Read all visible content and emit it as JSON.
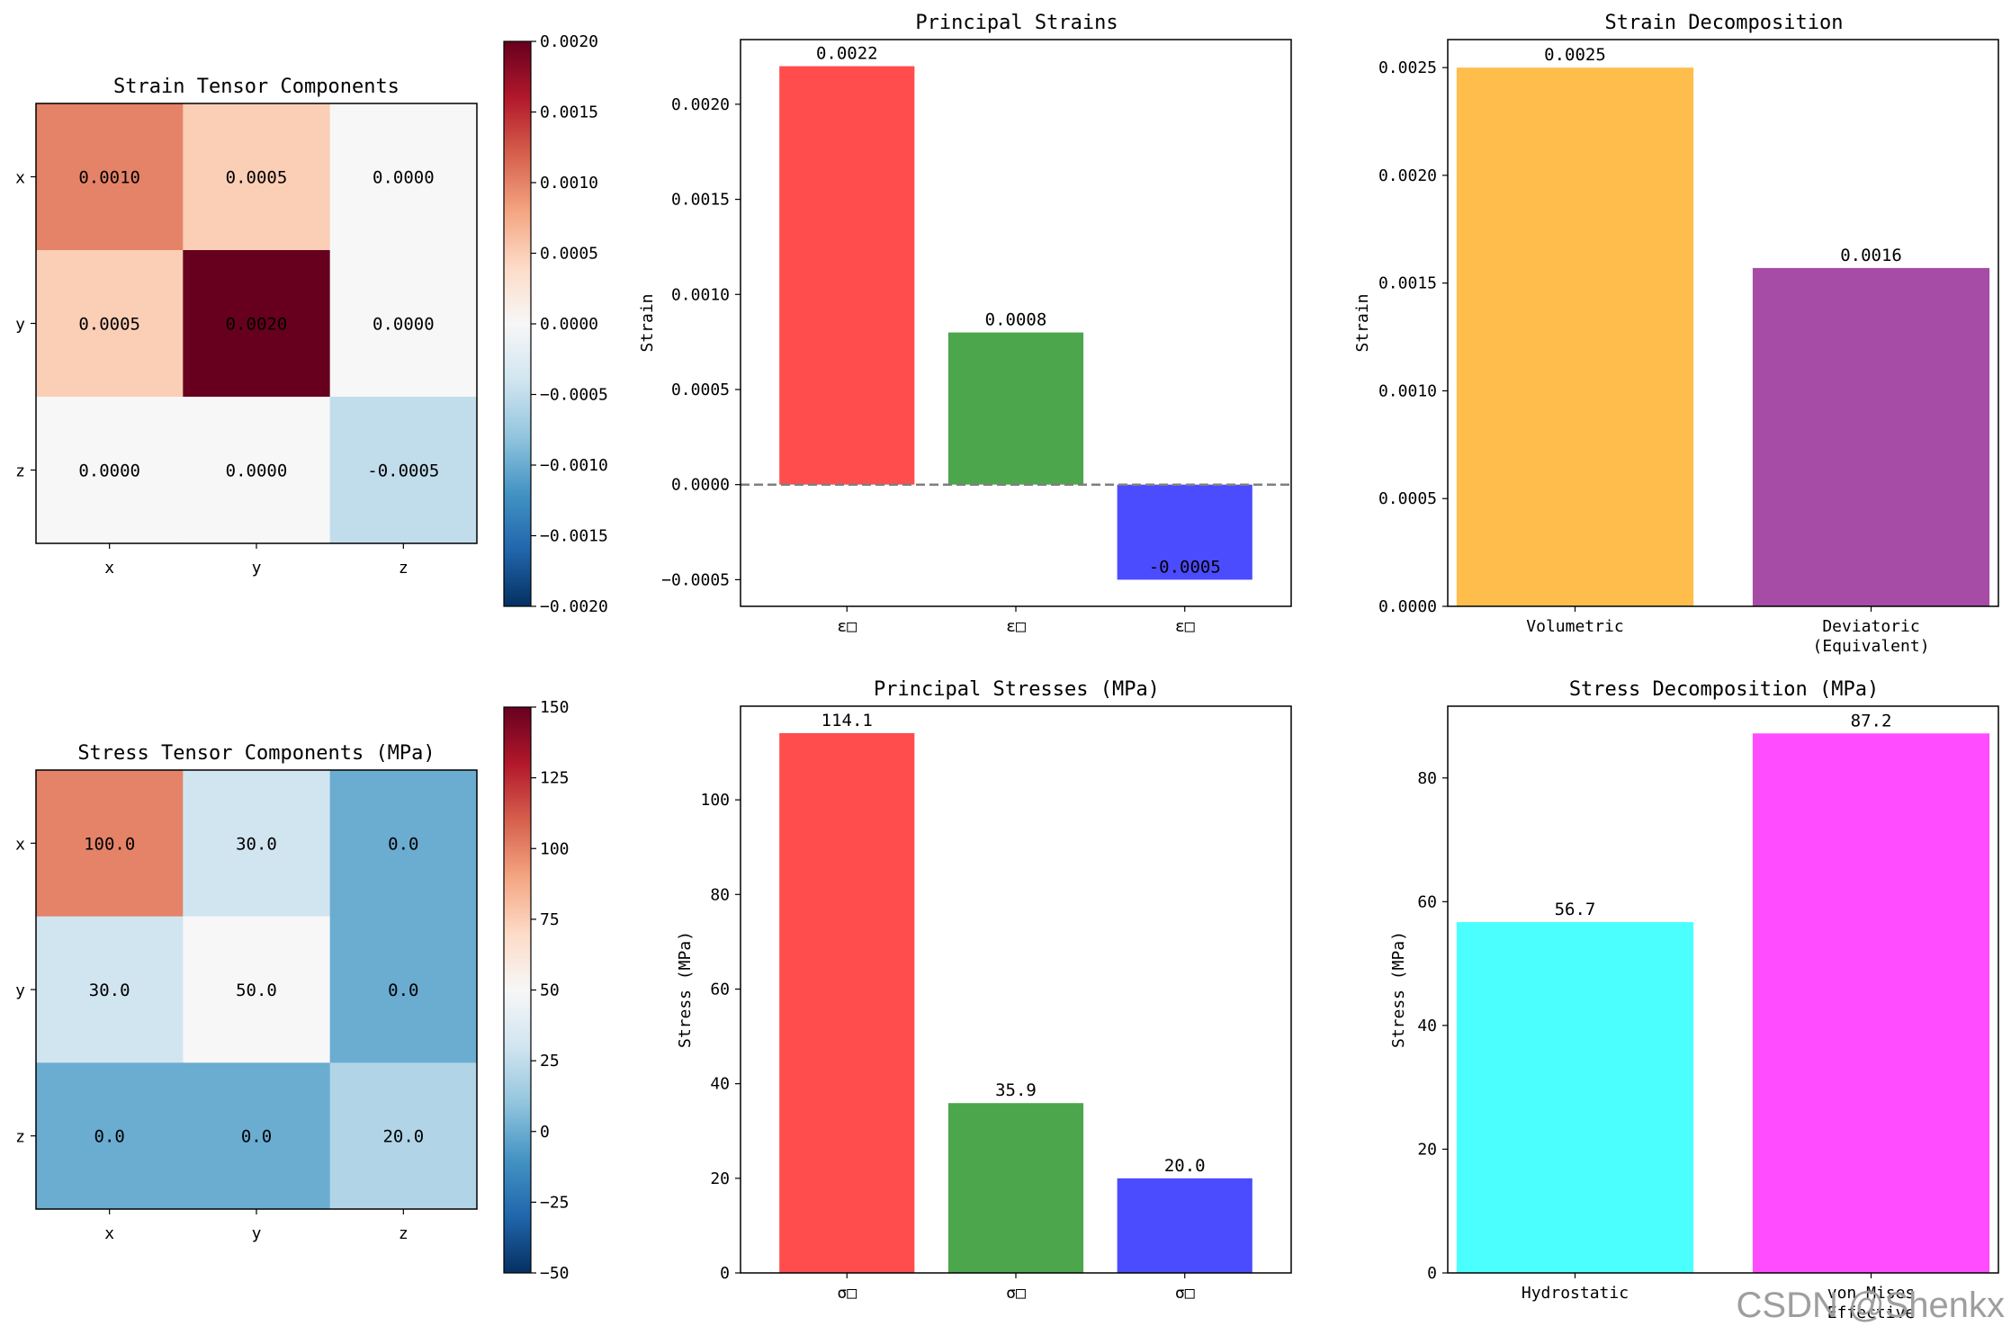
{
  "watermark": "CSDN @Shenkx",
  "chart_data": [
    {
      "type": "heatmap",
      "title": "Strain Tensor Components",
      "rows": [
        "x",
        "y",
        "z"
      ],
      "cols": [
        "x",
        "y",
        "z"
      ],
      "values": [
        [
          0.001,
          0.0005,
          0.0
        ],
        [
          0.0005,
          0.002,
          0.0
        ],
        [
          0.0,
          0.0,
          -0.0005
        ]
      ],
      "labels": [
        [
          "0.0010",
          "0.0005",
          "0.0000"
        ],
        [
          "0.0005",
          "0.0020",
          "0.0000"
        ],
        [
          "0.0000",
          "0.0000",
          "-0.0005"
        ]
      ],
      "colormap": "RdBu_r",
      "vmin": -0.002,
      "vmax": 0.002,
      "colorbar_ticks": [
        0.002,
        0.0015,
        0.001,
        0.0005,
        0.0,
        -0.0005,
        -0.001,
        -0.0015,
        -0.002
      ],
      "colorbar_tick_labels": [
        "0.0020",
        "0.0015",
        "0.0010",
        "0.0005",
        "0.0000",
        "−0.0005",
        "−0.0010",
        "−0.0015",
        "−0.0020"
      ]
    },
    {
      "type": "bar",
      "title": "Principal Strains",
      "categories": [
        "ε□",
        "ε□",
        "ε□"
      ],
      "values": [
        0.0022,
        0.0008,
        -0.0005
      ],
      "value_labels": [
        "0.0022",
        "0.0008",
        "-0.0005"
      ],
      "colors": [
        "#ff4c4c",
        "#4ca64c",
        "#4c4cff"
      ],
      "xlabel": "",
      "ylabel": "Strain",
      "ylim": [
        -0.00064,
        0.00234
      ],
      "yticks": [
        -0.0005,
        0.0,
        0.0005,
        0.001,
        0.0015,
        0.002
      ],
      "ytick_labels": [
        "−0.0005",
        "0.0000",
        "0.0005",
        "0.0010",
        "0.0015",
        "0.0020"
      ],
      "zero_line": true
    },
    {
      "type": "bar",
      "title": "Strain Decomposition",
      "categories": [
        "Volumetric",
        "Deviatoric\n(Equivalent)"
      ],
      "values": [
        0.0025,
        0.00157
      ],
      "value_labels": [
        "0.0025",
        "0.0016"
      ],
      "colors": [
        "#ffbd4c",
        "#a64ca6"
      ],
      "xlabel": "",
      "ylabel": "Strain",
      "ylim": [
        0,
        0.00263
      ],
      "yticks": [
        0,
        0.0005,
        0.001,
        0.0015,
        0.002,
        0.0025
      ],
      "ytick_labels": [
        "0.0000",
        "0.0005",
        "0.0010",
        "0.0015",
        "0.0020",
        "0.0025"
      ]
    },
    {
      "type": "heatmap",
      "title": "Stress Tensor Components (MPa)",
      "rows": [
        "x",
        "y",
        "z"
      ],
      "cols": [
        "x",
        "y",
        "z"
      ],
      "values": [
        [
          100.0,
          30.0,
          0.0
        ],
        [
          30.0,
          50.0,
          0.0
        ],
        [
          0.0,
          0.0,
          20.0
        ]
      ],
      "labels": [
        [
          "100.0",
          "30.0",
          "0.0"
        ],
        [
          "30.0",
          "50.0",
          "0.0"
        ],
        [
          "0.0",
          "0.0",
          "20.0"
        ]
      ],
      "colormap": "RdBu_r",
      "vmin": -50,
      "vmax": 150,
      "colorbar_ticks": [
        150,
        125,
        100,
        75,
        50,
        25,
        0,
        -25,
        -50
      ],
      "colorbar_tick_labels": [
        "150",
        "125",
        "100",
        "75",
        "50",
        "25",
        "0",
        "−25",
        "−50"
      ]
    },
    {
      "type": "bar",
      "title": "Principal Stresses (MPa)",
      "categories": [
        "σ□",
        "σ□",
        "σ□"
      ],
      "values": [
        114.1,
        35.9,
        20.0
      ],
      "value_labels": [
        "114.1",
        "35.9",
        "20.0"
      ],
      "colors": [
        "#ff4c4c",
        "#4ca64c",
        "#4c4cff"
      ],
      "xlabel": "",
      "ylabel": "Stress (MPa)",
      "ylim": [
        0,
        119.8
      ],
      "yticks": [
        0,
        20,
        40,
        60,
        80,
        100
      ],
      "ytick_labels": [
        "0",
        "20",
        "40",
        "60",
        "80",
        "100"
      ]
    },
    {
      "type": "bar",
      "title": "Stress Decomposition (MPa)",
      "categories": [
        "Hydrostatic",
        "von Mises\nEffective"
      ],
      "values": [
        56.7,
        87.2
      ],
      "value_labels": [
        "56.7",
        "87.2"
      ],
      "colors": [
        "#4cffff",
        "#ff4cff"
      ],
      "xlabel": "",
      "ylabel": "Stress (MPa)",
      "ylim": [
        0,
        91.6
      ],
      "yticks": [
        0,
        20,
        40,
        60,
        80
      ],
      "ytick_labels": [
        "0",
        "20",
        "40",
        "60",
        "80"
      ]
    }
  ]
}
